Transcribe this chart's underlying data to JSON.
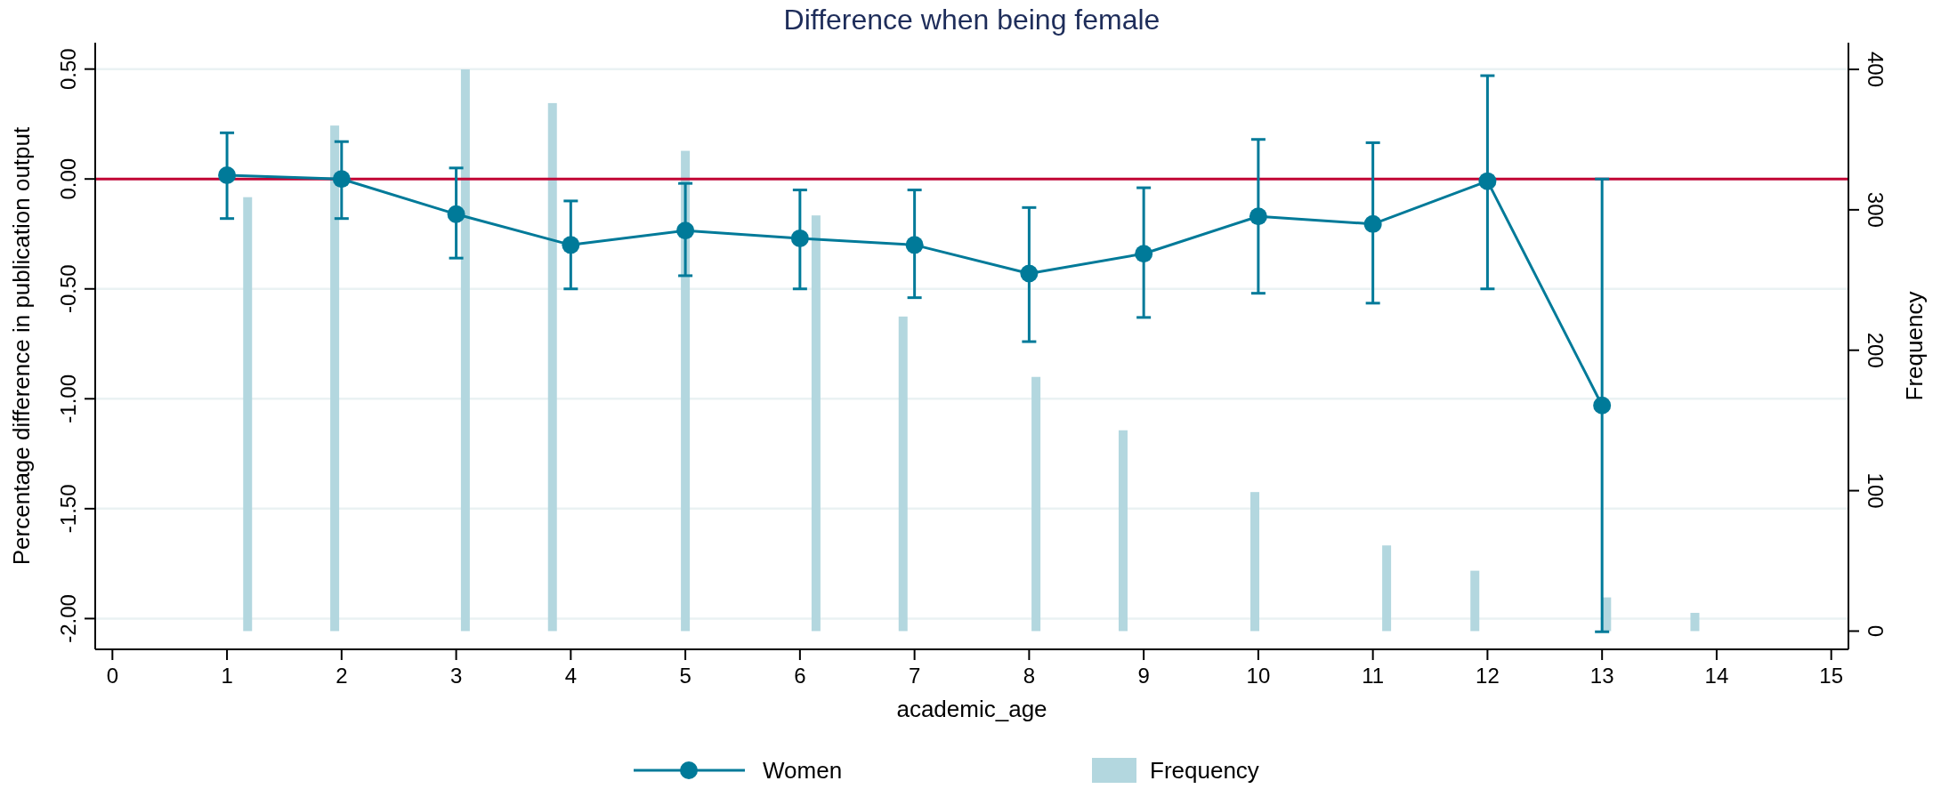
{
  "chart_data": {
    "type": "line",
    "title": "Difference when being female",
    "xlabel": "academic_age",
    "ylabel": "Percentage difference in publication output",
    "y2label": "Frequency",
    "xlim": [
      -0.15,
      15.15
    ],
    "xticks": [
      0,
      1,
      2,
      3,
      4,
      5,
      6,
      7,
      8,
      9,
      10,
      11,
      12,
      13,
      14,
      15
    ],
    "ylim": [
      -2.14,
      0.62
    ],
    "yticks": [
      {
        "value": 0.5,
        "label": "0.50"
      },
      {
        "value": 0,
        "label": "0.00"
      },
      {
        "value": -0.5,
        "label": "-0.50"
      },
      {
        "value": -1,
        "label": "-1.00"
      },
      {
        "value": -1.5,
        "label": "-1.50"
      },
      {
        "value": -2,
        "label": "-2.00"
      }
    ],
    "y2lim": [
      -13,
      419
    ],
    "y2ticks": [
      0,
      100,
      200,
      300,
      400
    ],
    "grid": "y",
    "legend": "bottom",
    "marker": "circle",
    "ref_lines": [
      {
        "axis": "y",
        "value": 0,
        "color": "#c10534"
      }
    ],
    "series": [
      {
        "name": "Women",
        "color": "#007a99",
        "x": [
          1,
          2,
          3,
          4,
          5,
          6,
          7,
          8,
          9,
          10,
          11,
          12,
          13
        ],
        "values": [
          0.017,
          0,
          -0.16,
          -0.3,
          -0.235,
          -0.27,
          -0.3,
          -0.43,
          -0.34,
          -0.17,
          -0.205,
          -0.01,
          -1.03
        ],
        "errors": [
          [
            -0.18,
            0.21
          ],
          [
            -0.18,
            0.17
          ],
          [
            -0.36,
            0.05
          ],
          [
            -0.5,
            -0.1
          ],
          [
            -0.44,
            -0.02
          ],
          [
            -0.5,
            -0.05
          ],
          [
            -0.54,
            -0.05
          ],
          [
            -0.74,
            -0.13
          ],
          [
            -0.63,
            -0.04
          ],
          [
            -0.52,
            0.18
          ],
          [
            -0.565,
            0.165
          ],
          [
            -0.5,
            0.47
          ],
          [
            -2.06,
            0
          ]
        ]
      },
      {
        "name": "Frequency",
        "type": "bar",
        "axis": "y2",
        "color": "#b3d7df",
        "x": [
          1.18,
          1.94,
          3.08,
          3.84,
          5,
          6.14,
          6.9,
          8.06,
          8.82,
          9.97,
          11.12,
          11.89,
          13.04,
          13.81
        ],
        "values": [
          309,
          360,
          400,
          376,
          342,
          296,
          224,
          181,
          143,
          99,
          61,
          43,
          24,
          13
        ]
      }
    ]
  }
}
